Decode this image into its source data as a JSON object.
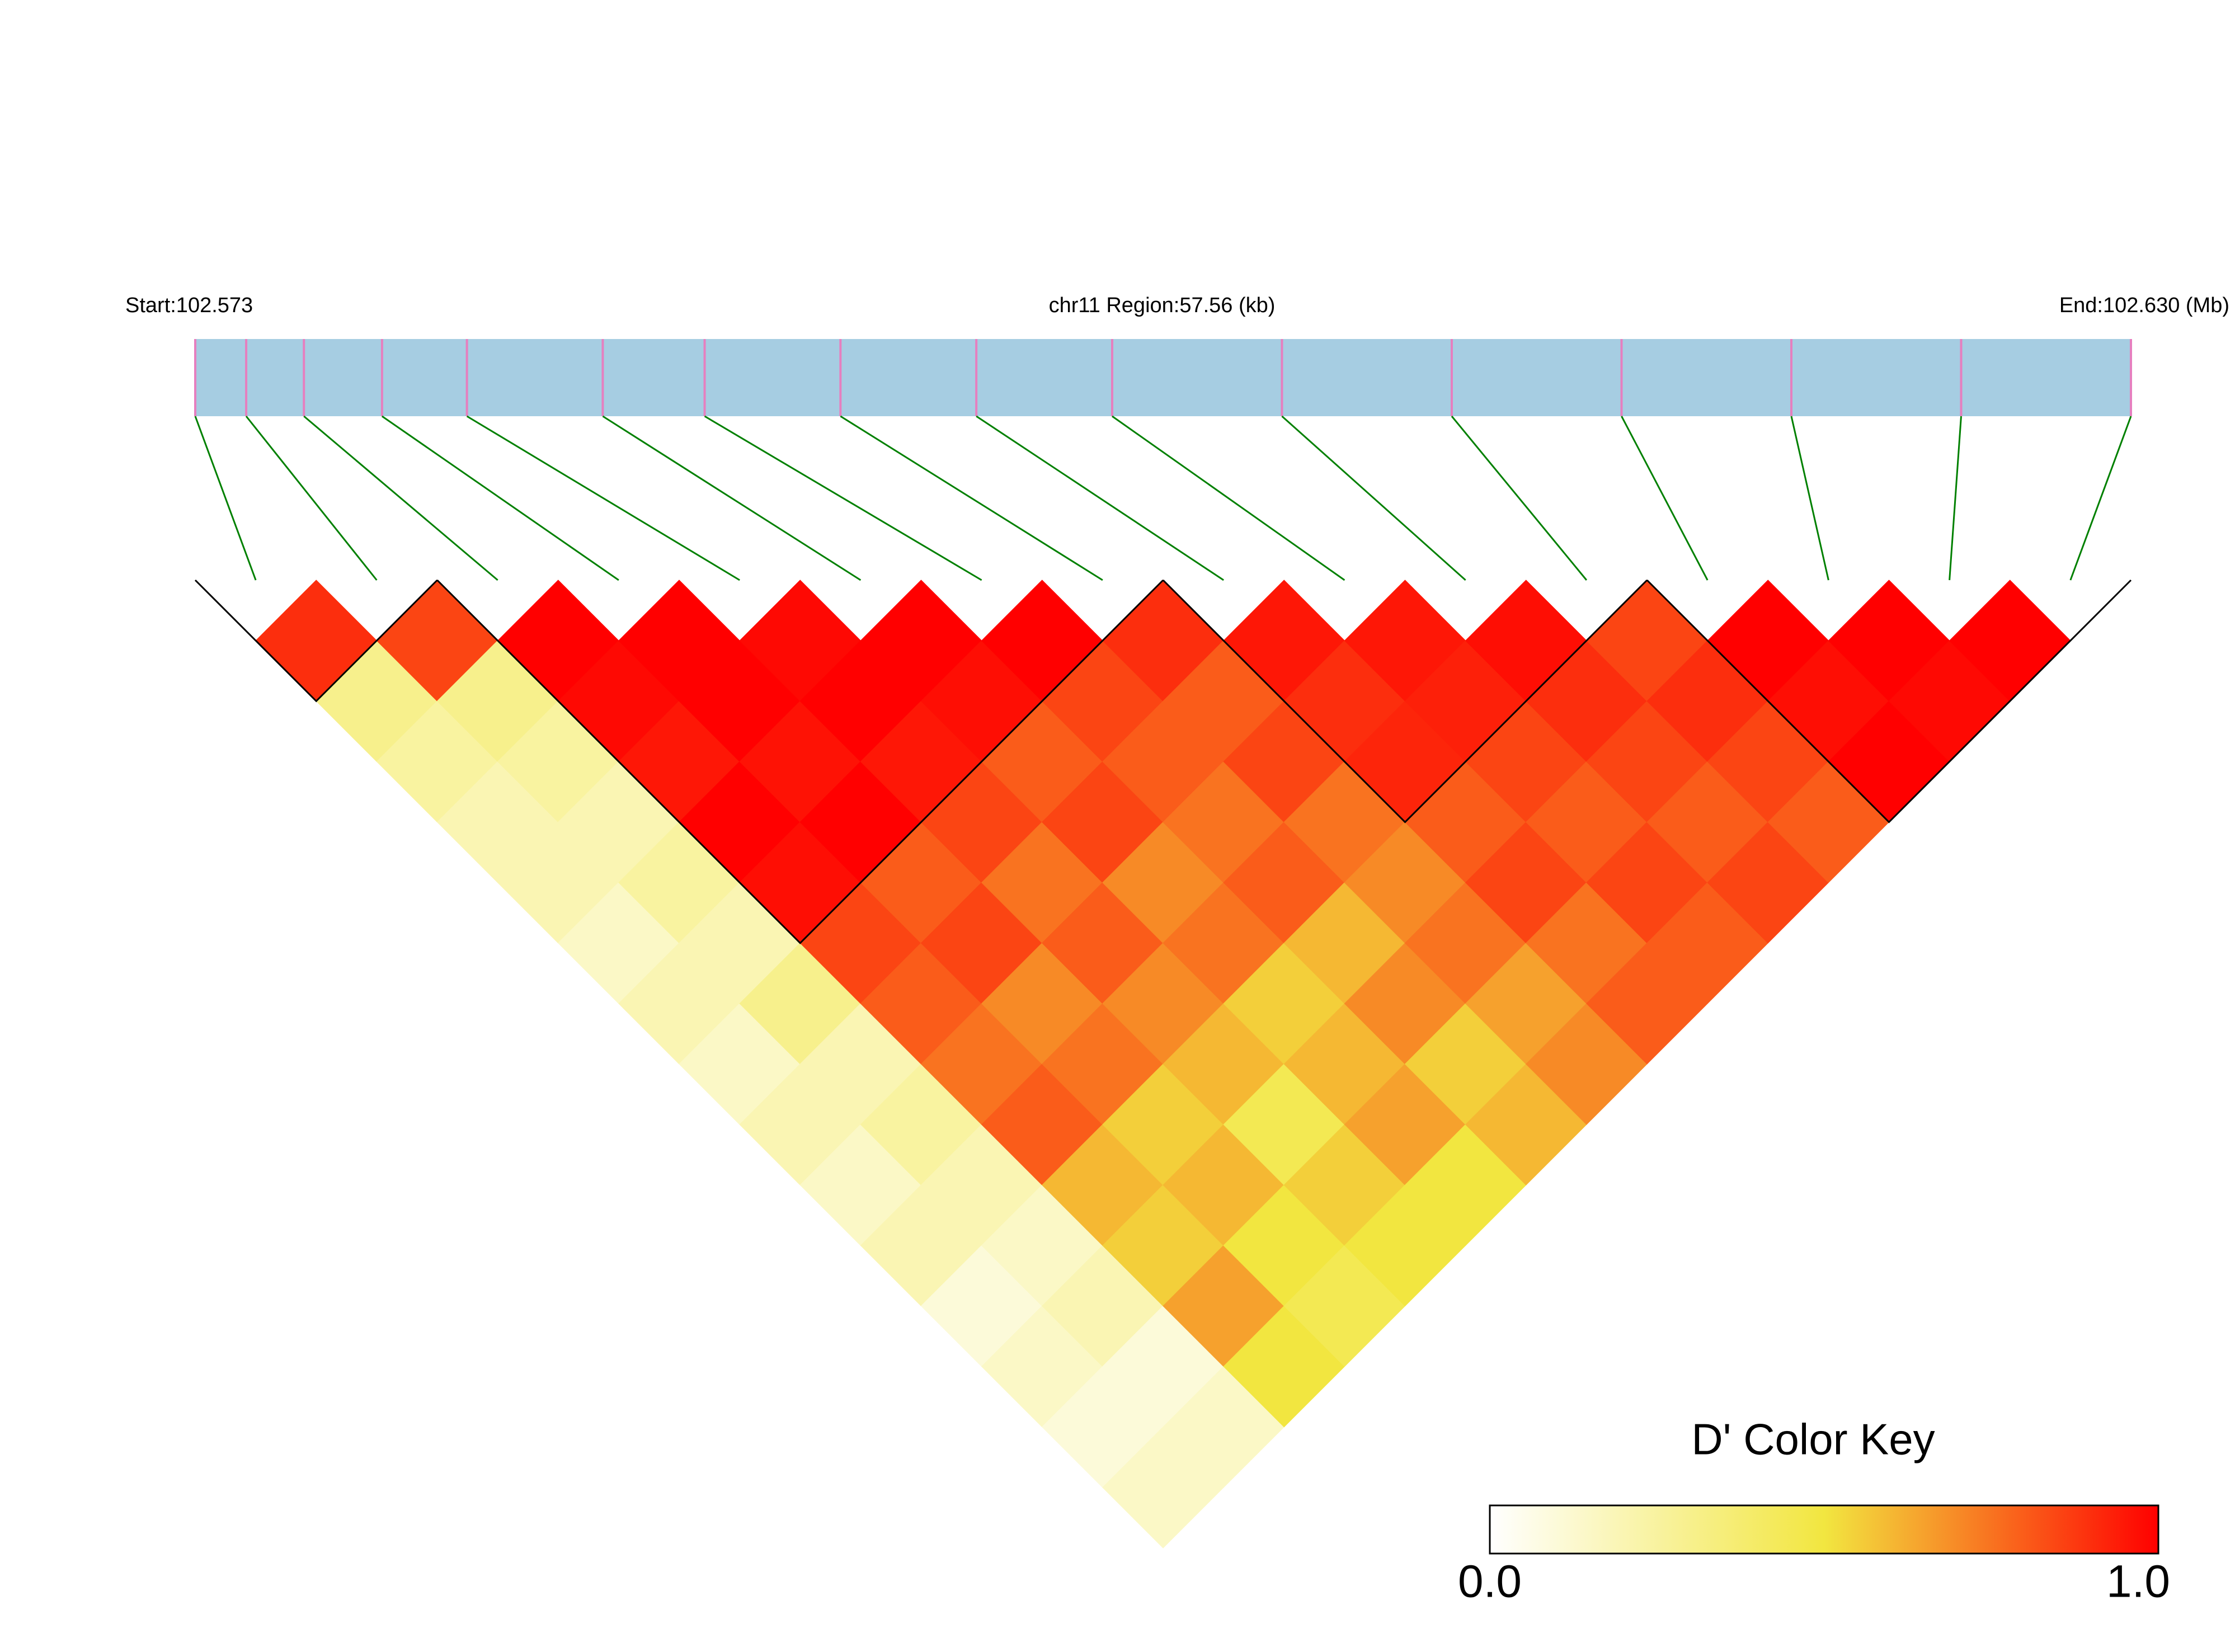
{
  "chart_data": {
    "type": "ld-heatmap",
    "start": {
      "value": 102.573,
      "label": "Start:102.573"
    },
    "end": {
      "value": 102.63,
      "label": "End:102.630 (Mb)"
    },
    "region": "chr11 Region:57.56 (kb)",
    "snp_positions": [
      102.573,
      102.5745,
      102.5762,
      102.5785,
      102.581,
      102.585,
      102.588,
      102.592,
      102.596,
      102.6,
      102.605,
      102.61,
      102.615,
      102.62,
      102.625,
      102.63
    ],
    "matrix": [
      [
        0.9,
        0.3,
        0.25,
        0.2,
        0.2,
        0.15,
        0.2,
        0.15,
        0.2,
        0.15,
        0.2,
        0.1,
        0.15,
        0.1,
        0.15
      ],
      [
        0.85,
        0.3,
        0.25,
        0.2,
        0.25,
        0.2,
        0.3,
        0.2,
        0.25,
        0.2,
        0.15,
        0.2,
        0.1,
        0.15
      ],
      [
        1,
        0.98,
        0.95,
        1,
        0.97,
        0.85,
        0.8,
        0.75,
        0.8,
        0.6,
        0.55,
        0.65,
        0.5
      ],
      [
        1,
        1,
        0.96,
        1,
        0.8,
        0.85,
        0.7,
        0.75,
        0.55,
        0.6,
        0.5,
        0.45
      ],
      [
        0.98,
        1,
        0.95,
        0.85,
        0.75,
        0.8,
        0.7,
        0.6,
        0.45,
        0.55,
        0.5
      ],
      [
        1,
        0.97,
        0.8,
        0.85,
        0.7,
        0.75,
        0.55,
        0.6,
        0.65,
        0.5
      ],
      [
        1,
        0.85,
        0.8,
        0.75,
        0.8,
        0.6,
        0.7,
        0.55,
        0.6
      ],
      [
        0.9,
        0.8,
        0.85,
        0.75,
        0.7,
        0.75,
        0.65,
        0.7
      ],
      [
        0.95,
        0.9,
        0.92,
        0.8,
        0.85,
        0.75,
        0.8
      ],
      [
        0.95,
        0.93,
        0.85,
        0.8,
        0.85,
        0.8
      ],
      [
        0.97,
        0.9,
        0.85,
        0.8,
        0.85
      ],
      [
        0.85,
        0.9,
        0.85,
        0.8
      ],
      [
        1,
        0.97,
        1
      ],
      [
        1,
        0.98
      ],
      [
        1
      ]
    ],
    "blocks": [
      [
        0,
        1
      ],
      [
        2,
        7
      ],
      [
        8,
        11
      ],
      [
        12,
        15
      ]
    ],
    "track_color": "#a6cde2",
    "snp_color": "#e67fbf",
    "link_color": "#008000",
    "colorbar_title": "D' Color Key",
    "clim": [
      0,
      1
    ],
    "colors": [
      "#ffffff",
      "#f2e640",
      "#ff0000"
    ],
    "cticks": [
      {
        "value": 0,
        "label": "0.0"
      },
      {
        "value": 1,
        "label": "1.0"
      }
    ]
  }
}
